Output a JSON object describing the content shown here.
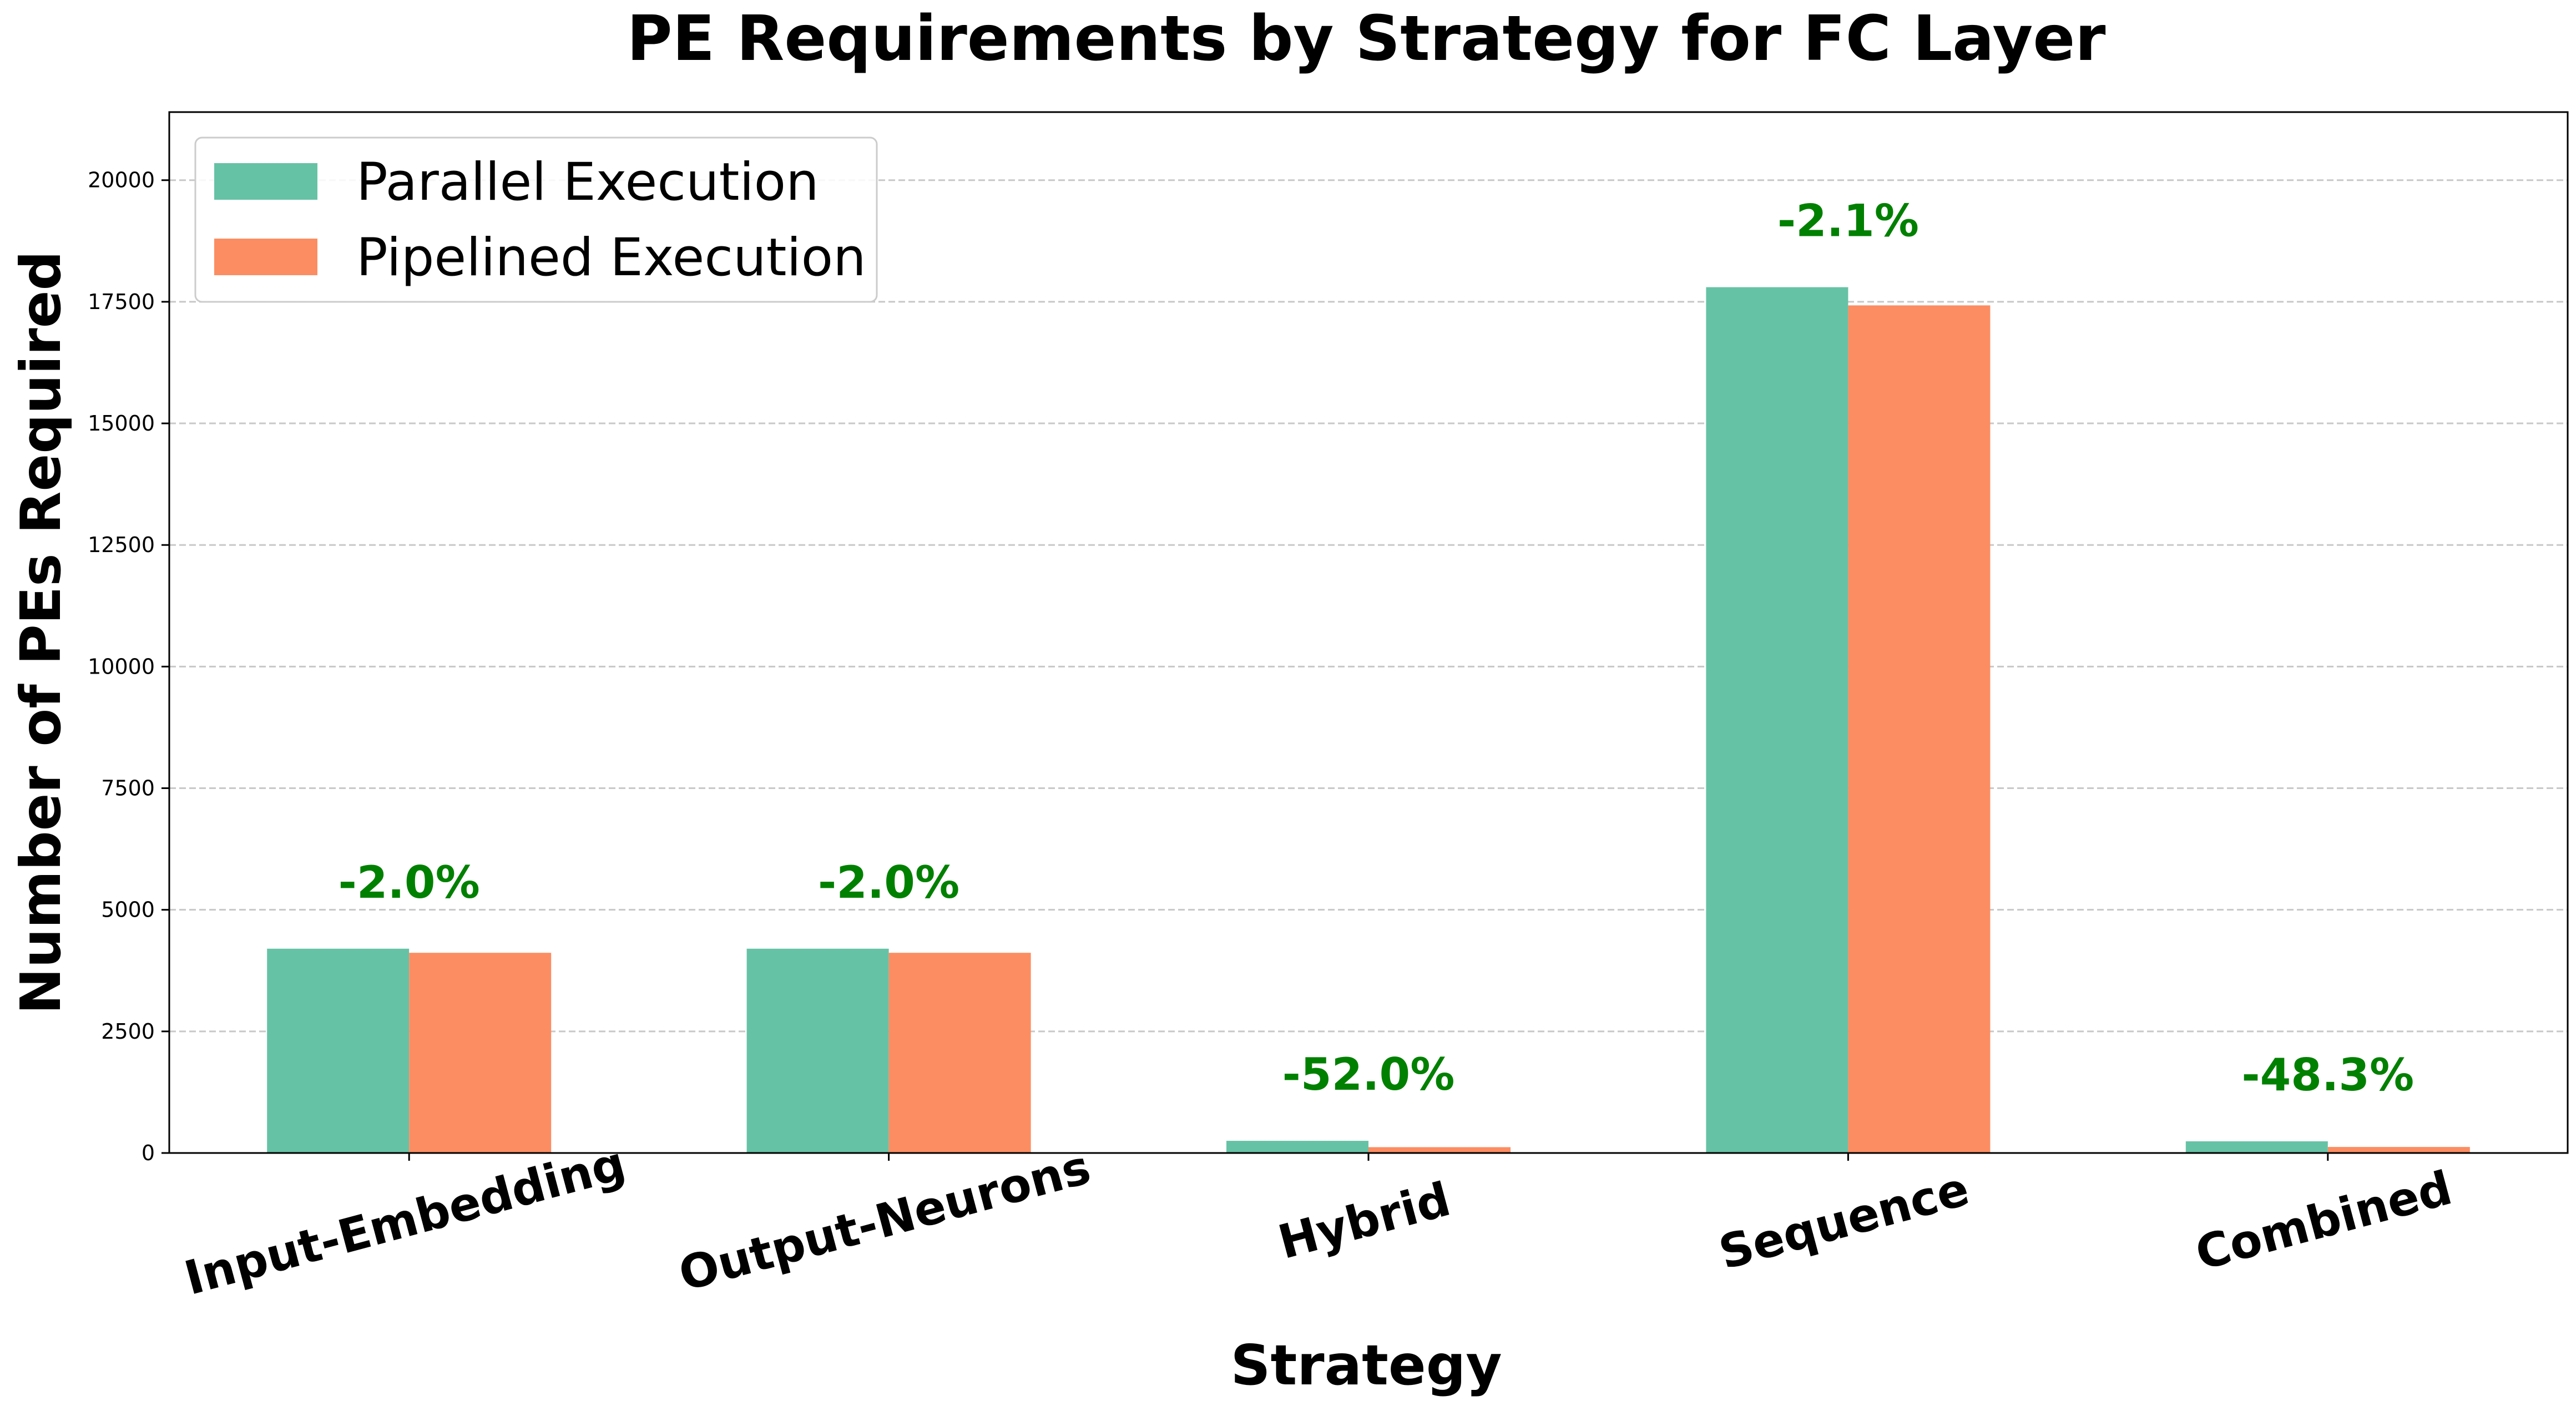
{
  "chart_data": {
    "type": "bar",
    "title": "PE Requirements by Strategy for FC Layer",
    "xlabel": "Strategy",
    "ylabel": "Number of PEs Required",
    "categories": [
      "Input-Embedding",
      "Output-Neurons",
      "Hybrid",
      "Sequence",
      "Combined"
    ],
    "series": [
      {
        "name": "Parallel Execution",
        "color": "#66c2a5",
        "values": [
          4200,
          4200,
          250,
          17800,
          240
        ]
      },
      {
        "name": "Pipelined Execution",
        "color": "#fc8d62",
        "values": [
          4116,
          4116,
          120,
          17426,
          124
        ]
      }
    ],
    "annotations": [
      "-2.0%",
      "-2.0%",
      "-52.0%",
      "-2.1%",
      "-48.3%"
    ],
    "annotation_color": "#008000",
    "ylim": [
      0,
      21400
    ],
    "yticks": [
      0,
      2500,
      5000,
      7500,
      10000,
      12500,
      15000,
      17500,
      20000
    ],
    "ytick_labels": [
      "0",
      "2500",
      "5000",
      "7500",
      "10000",
      "12500",
      "15000",
      "17500",
      "20000"
    ],
    "grid": "y, dashed",
    "legend": "top-left"
  }
}
